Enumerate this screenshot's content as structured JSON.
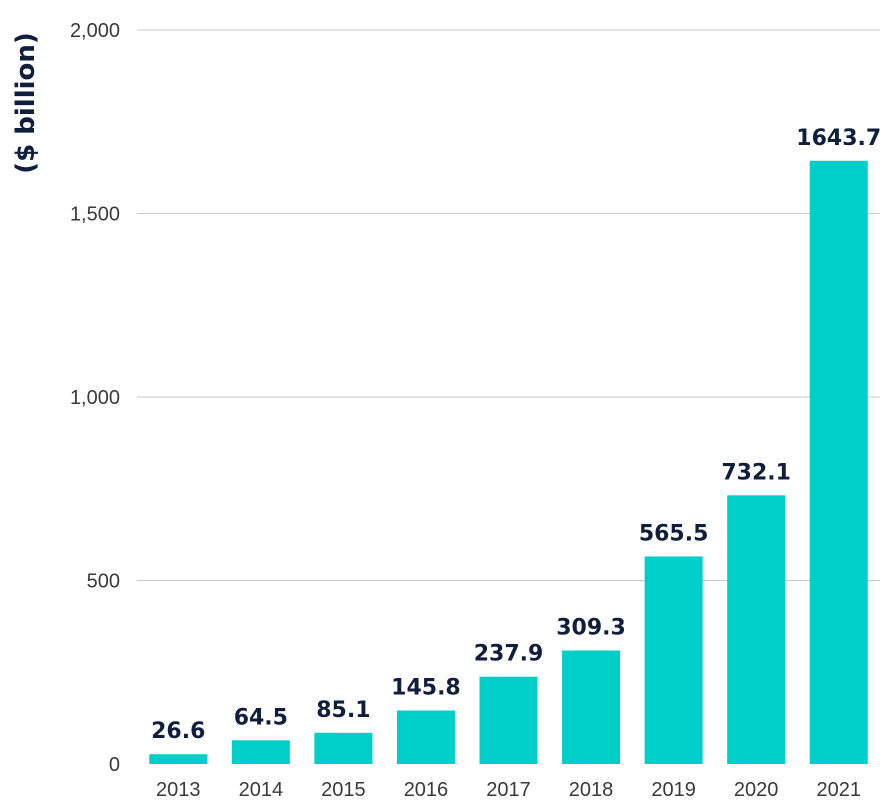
{
  "chart_data": {
    "type": "bar",
    "title": "",
    "xlabel": "",
    "ylabel": "($ billion)",
    "categories": [
      "2013",
      "2014",
      "2015",
      "2016",
      "2017",
      "2018",
      "2019",
      "2020",
      "2021"
    ],
    "values": [
      26.6,
      64.5,
      85.1,
      145.8,
      237.9,
      309.3,
      565.5,
      732.1,
      1643.7
    ],
    "data_labels": [
      "26.6",
      "64.5",
      "85.1",
      "145.8",
      "237.9",
      "309.3",
      "565.5",
      "732.1",
      "1643.7"
    ],
    "ylim": [
      0,
      2000
    ],
    "yticks": [
      0,
      500,
      1000,
      1500,
      2000
    ],
    "ytick_labels": [
      "0",
      "500",
      "1,000",
      "1,500",
      "2,000"
    ],
    "grid": true,
    "colors": {
      "bar": "#00cec8",
      "label": "#0f1e3c",
      "grid": "#c8c8c8",
      "tick": "#3a3a3a"
    }
  }
}
